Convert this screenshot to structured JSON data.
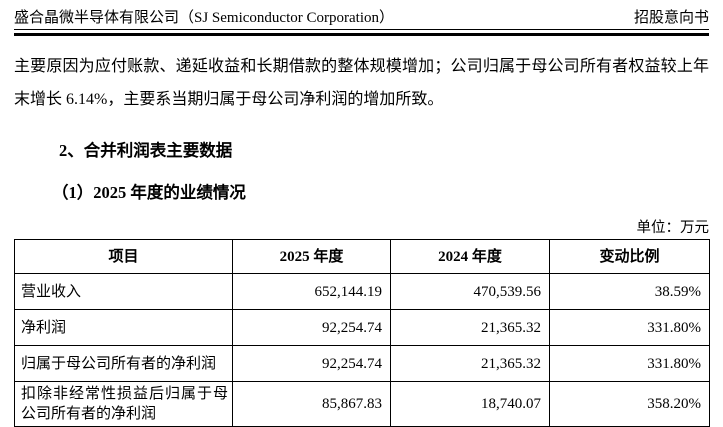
{
  "colors": {
    "ink": "#000000",
    "background": "#ffffff",
    "table_border": "#000000"
  },
  "header": {
    "company": "盛合晶微半导体有限公司（SJ Semiconductor Corporation）",
    "doc_type": "招股意向书"
  },
  "paragraph": "主要原因为应付账款、递延收益和长期借款的整体规模增加；公司归属于母公司所有者权益较上年末增长 6.14%，主要系当期归属于母公司净利润的增加所致。",
  "sections": {
    "heading1": "2、合并利润表主要数据",
    "heading2": "（1）2025 年度的业绩情况"
  },
  "table": {
    "unit_label": "单位：万元",
    "headers": [
      "项目",
      "2025 年度",
      "2024 年度",
      "变动比例"
    ],
    "rows": [
      {
        "item": "营业收入",
        "y2025": "652,144.19",
        "y2024": "470,539.56",
        "change": "38.59%"
      },
      {
        "item": "净利润",
        "y2025": "92,254.74",
        "y2024": "21,365.32",
        "change": "331.80%"
      },
      {
        "item": "归属于母公司所有者的净利润",
        "y2025": "92,254.74",
        "y2024": "21,365.32",
        "change": "331.80%"
      },
      {
        "item": "扣除非经常性损益后归属于母公司所有者的净利润",
        "y2025": "85,867.83",
        "y2024": "18,740.07",
        "change": "358.20%"
      }
    ]
  }
}
